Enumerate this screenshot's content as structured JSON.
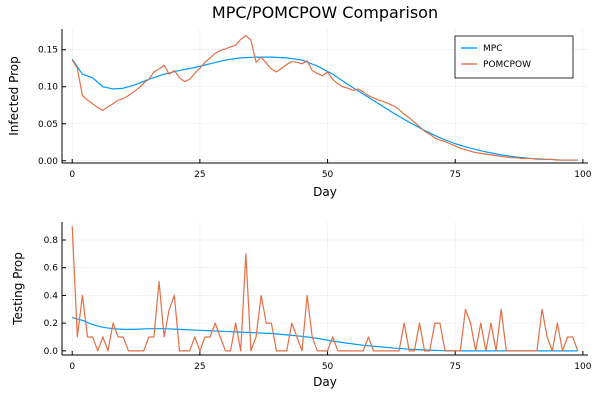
{
  "figure_title": "MPC/POMCPOW Comparison",
  "colors": {
    "mpc": "#009af9",
    "pomcpow": "#e26f46"
  },
  "chart_data": [
    {
      "type": "line",
      "xlabel": "Day",
      "ylabel": "Infected Prop",
      "xlim": [
        -2,
        101
      ],
      "ylim": [
        -0.003,
        0.178
      ],
      "xticks": [
        0,
        25,
        50,
        75,
        100
      ],
      "xtick_labels": [
        "0",
        "25",
        "50",
        "75",
        "100"
      ],
      "yticks": [
        0.0,
        0.05,
        0.1,
        0.15
      ],
      "ytick_labels": [
        "0.00",
        "0.05",
        "0.10",
        "0.15"
      ],
      "legend": "top-right",
      "grid": true,
      "series": [
        {
          "name": "MPC",
          "x": [
            0,
            2,
            4,
            6,
            8,
            10,
            12,
            15,
            18,
            21,
            24,
            27,
            30,
            33,
            36,
            39,
            42,
            45,
            48,
            51,
            54,
            57,
            60,
            63,
            66,
            69,
            72,
            75,
            78,
            81,
            84,
            87,
            90,
            93,
            96,
            99
          ],
          "y": [
            0.137,
            0.117,
            0.112,
            0.1,
            0.097,
            0.098,
            0.102,
            0.11,
            0.117,
            0.122,
            0.126,
            0.131,
            0.136,
            0.139,
            0.14,
            0.14,
            0.139,
            0.136,
            0.128,
            0.117,
            0.103,
            0.09,
            0.077,
            0.064,
            0.052,
            0.041,
            0.031,
            0.023,
            0.017,
            0.012,
            0.008,
            0.005,
            0.003,
            0.002,
            0.001,
            0.001
          ]
        },
        {
          "name": "POMCPOW",
          "x": [
            0,
            1,
            2,
            3,
            4,
            5,
            6,
            7,
            8,
            9,
            10,
            11,
            12,
            13,
            14,
            15,
            16,
            17,
            18,
            19,
            20,
            21,
            22,
            23,
            24,
            25,
            26,
            27,
            28,
            29,
            30,
            31,
            32,
            33,
            34,
            35,
            36,
            37,
            38,
            39,
            40,
            41,
            42,
            43,
            44,
            45,
            46,
            47,
            48,
            49,
            50,
            51,
            52,
            53,
            54,
            55,
            56,
            57,
            58,
            59,
            60,
            61,
            62,
            63,
            64,
            65,
            66,
            67,
            68,
            69,
            70,
            71,
            72,
            73,
            74,
            75,
            76,
            77,
            78,
            79,
            80,
            81,
            82,
            83,
            84,
            85,
            86,
            87,
            88,
            89,
            90,
            91,
            92,
            93,
            94,
            95,
            96,
            97,
            98,
            99
          ],
          "y": [
            0.136,
            0.125,
            0.088,
            0.082,
            0.077,
            0.072,
            0.068,
            0.073,
            0.077,
            0.082,
            0.084,
            0.088,
            0.093,
            0.098,
            0.105,
            0.11,
            0.12,
            0.124,
            0.129,
            0.117,
            0.122,
            0.112,
            0.107,
            0.11,
            0.118,
            0.125,
            0.133,
            0.139,
            0.145,
            0.149,
            0.151,
            0.154,
            0.156,
            0.164,
            0.169,
            0.163,
            0.133,
            0.14,
            0.132,
            0.124,
            0.12,
            0.125,
            0.13,
            0.134,
            0.133,
            0.131,
            0.135,
            0.122,
            0.118,
            0.115,
            0.12,
            0.11,
            0.104,
            0.1,
            0.098,
            0.095,
            0.097,
            0.093,
            0.088,
            0.085,
            0.082,
            0.08,
            0.077,
            0.074,
            0.069,
            0.063,
            0.058,
            0.052,
            0.046,
            0.04,
            0.036,
            0.031,
            0.028,
            0.026,
            0.023,
            0.02,
            0.017,
            0.015,
            0.013,
            0.011,
            0.01,
            0.009,
            0.008,
            0.007,
            0.006,
            0.005,
            0.004,
            0.004,
            0.003,
            0.003,
            0.003,
            0.002,
            0.002,
            0.002,
            0.002,
            0.001,
            0.001,
            0.001,
            0.001,
            0.001
          ]
        }
      ]
    },
    {
      "type": "line",
      "xlabel": "Day",
      "ylabel": "Testing Prop",
      "xlim": [
        -2,
        101
      ],
      "ylim": [
        -0.03,
        0.93
      ],
      "xticks": [
        0,
        25,
        50,
        75,
        100
      ],
      "xtick_labels": [
        "0",
        "25",
        "50",
        "75",
        "100"
      ],
      "yticks": [
        0.0,
        0.2,
        0.4,
        0.6,
        0.8
      ],
      "ytick_labels": [
        "0.0",
        "0.2",
        "0.4",
        "0.6",
        "0.8"
      ],
      "legend": "none",
      "grid": true,
      "series": [
        {
          "name": "MPC",
          "x": [
            0,
            2,
            4,
            6,
            8,
            10,
            12,
            15,
            18,
            21,
            24,
            27,
            30,
            33,
            36,
            39,
            42,
            45,
            48,
            51,
            54,
            57,
            60,
            63,
            66,
            69,
            72,
            75,
            78,
            81,
            84,
            87,
            90,
            93,
            96,
            99
          ],
          "y": [
            0.24,
            0.22,
            0.19,
            0.17,
            0.16,
            0.155,
            0.155,
            0.16,
            0.16,
            0.155,
            0.15,
            0.145,
            0.14,
            0.135,
            0.13,
            0.125,
            0.115,
            0.105,
            0.09,
            0.07,
            0.055,
            0.04,
            0.03,
            0.02,
            0.012,
            0.006,
            0.002,
            0.0,
            0.0,
            0.0,
            0.0,
            0.0,
            0.0,
            0.0,
            0.0,
            0.0
          ]
        },
        {
          "name": "POMCPOW",
          "x": [
            0,
            1,
            2,
            3,
            4,
            5,
            6,
            7,
            8,
            9,
            10,
            11,
            12,
            13,
            14,
            15,
            16,
            17,
            18,
            19,
            20,
            21,
            22,
            23,
            24,
            25,
            26,
            27,
            28,
            29,
            30,
            31,
            32,
            33,
            34,
            35,
            36,
            37,
            38,
            39,
            40,
            41,
            42,
            43,
            44,
            45,
            46,
            47,
            48,
            49,
            50,
            51,
            52,
            53,
            54,
            55,
            56,
            57,
            58,
            59,
            60,
            61,
            62,
            63,
            64,
            65,
            66,
            67,
            68,
            69,
            70,
            71,
            72,
            73,
            74,
            75,
            76,
            77,
            78,
            79,
            80,
            81,
            82,
            83,
            84,
            85,
            86,
            87,
            88,
            89,
            90,
            91,
            92,
            93,
            94,
            95,
            96,
            97,
            98,
            99
          ],
          "y": [
            0.9,
            0.1,
            0.4,
            0.1,
            0.1,
            0.0,
            0.1,
            0.0,
            0.2,
            0.1,
            0.1,
            0.0,
            0.0,
            0.0,
            0.0,
            0.1,
            0.1,
            0.5,
            0.1,
            0.3,
            0.4,
            0.0,
            0.0,
            0.0,
            0.1,
            0.0,
            0.1,
            0.1,
            0.2,
            0.1,
            0.0,
            0.0,
            0.2,
            0.0,
            0.7,
            0.0,
            0.1,
            0.4,
            0.2,
            0.2,
            0.0,
            0.0,
            0.0,
            0.2,
            0.1,
            0.0,
            0.4,
            0.1,
            0.0,
            0.0,
            0.0,
            0.1,
            0.0,
            0.0,
            0.0,
            0.0,
            0.0,
            0.0,
            0.1,
            0.0,
            0.0,
            0.0,
            0.0,
            0.0,
            0.0,
            0.2,
            0.0,
            0.0,
            0.2,
            0.0,
            0.0,
            0.2,
            0.2,
            0.0,
            0.0,
            0.0,
            0.0,
            0.3,
            0.2,
            0.0,
            0.2,
            0.0,
            0.2,
            0.0,
            0.3,
            0.0,
            0.0,
            0.0,
            0.0,
            0.0,
            0.0,
            0.0,
            0.3,
            0.1,
            0.0,
            0.2,
            0.0,
            0.1,
            0.1,
            0.0
          ]
        }
      ]
    }
  ]
}
